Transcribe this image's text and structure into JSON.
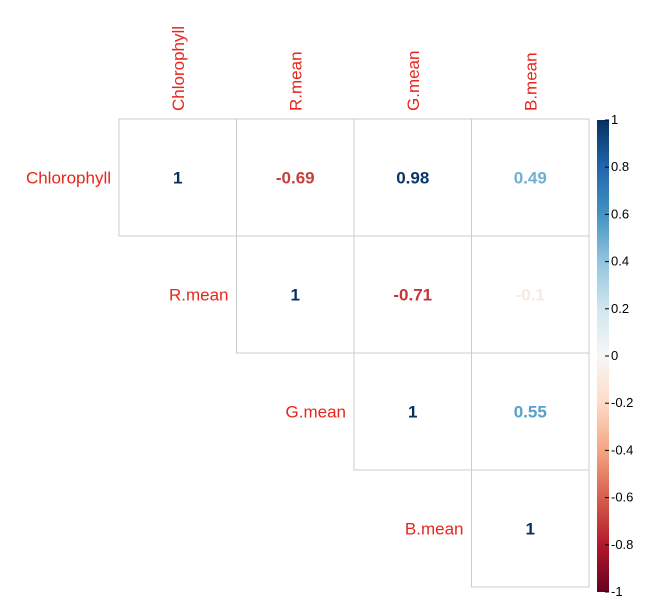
{
  "chart_data": {
    "type": "heatmap",
    "variables": [
      "Chlorophyll",
      "R.mean",
      "G.mean",
      "B.mean"
    ],
    "matrix": [
      [
        1,
        -0.69,
        0.98,
        0.49
      ],
      [
        null,
        1,
        -0.71,
        -0.1
      ],
      [
        null,
        null,
        1,
        0.55
      ],
      [
        null,
        null,
        null,
        1
      ]
    ],
    "cell_labels": [
      [
        "1",
        "-0.69",
        "0.98",
        "0.49"
      ],
      [
        null,
        "1",
        "-0.71",
        "-0.1"
      ],
      [
        null,
        null,
        "1",
        "0.55"
      ],
      [
        null,
        null,
        null,
        "1"
      ]
    ],
    "triangle": "upper",
    "colorbar": {
      "range": [
        -1,
        1
      ],
      "ticks": [
        "1",
        "0.8",
        "0.6",
        "0.4",
        "0.2",
        "0",
        "-0.2",
        "-0.4",
        "-0.6",
        "-0.8",
        "-1"
      ],
      "colors": [
        "#67001f",
        "#b2182b",
        "#d6604d",
        "#f4a582",
        "#fddbc7",
        "#f7f7f7",
        "#d1e5f0",
        "#92c5de",
        "#4393c3",
        "#2166ac",
        "#053061"
      ],
      "placement": "right"
    },
    "label_color": "#e8261c",
    "grid": true
  }
}
